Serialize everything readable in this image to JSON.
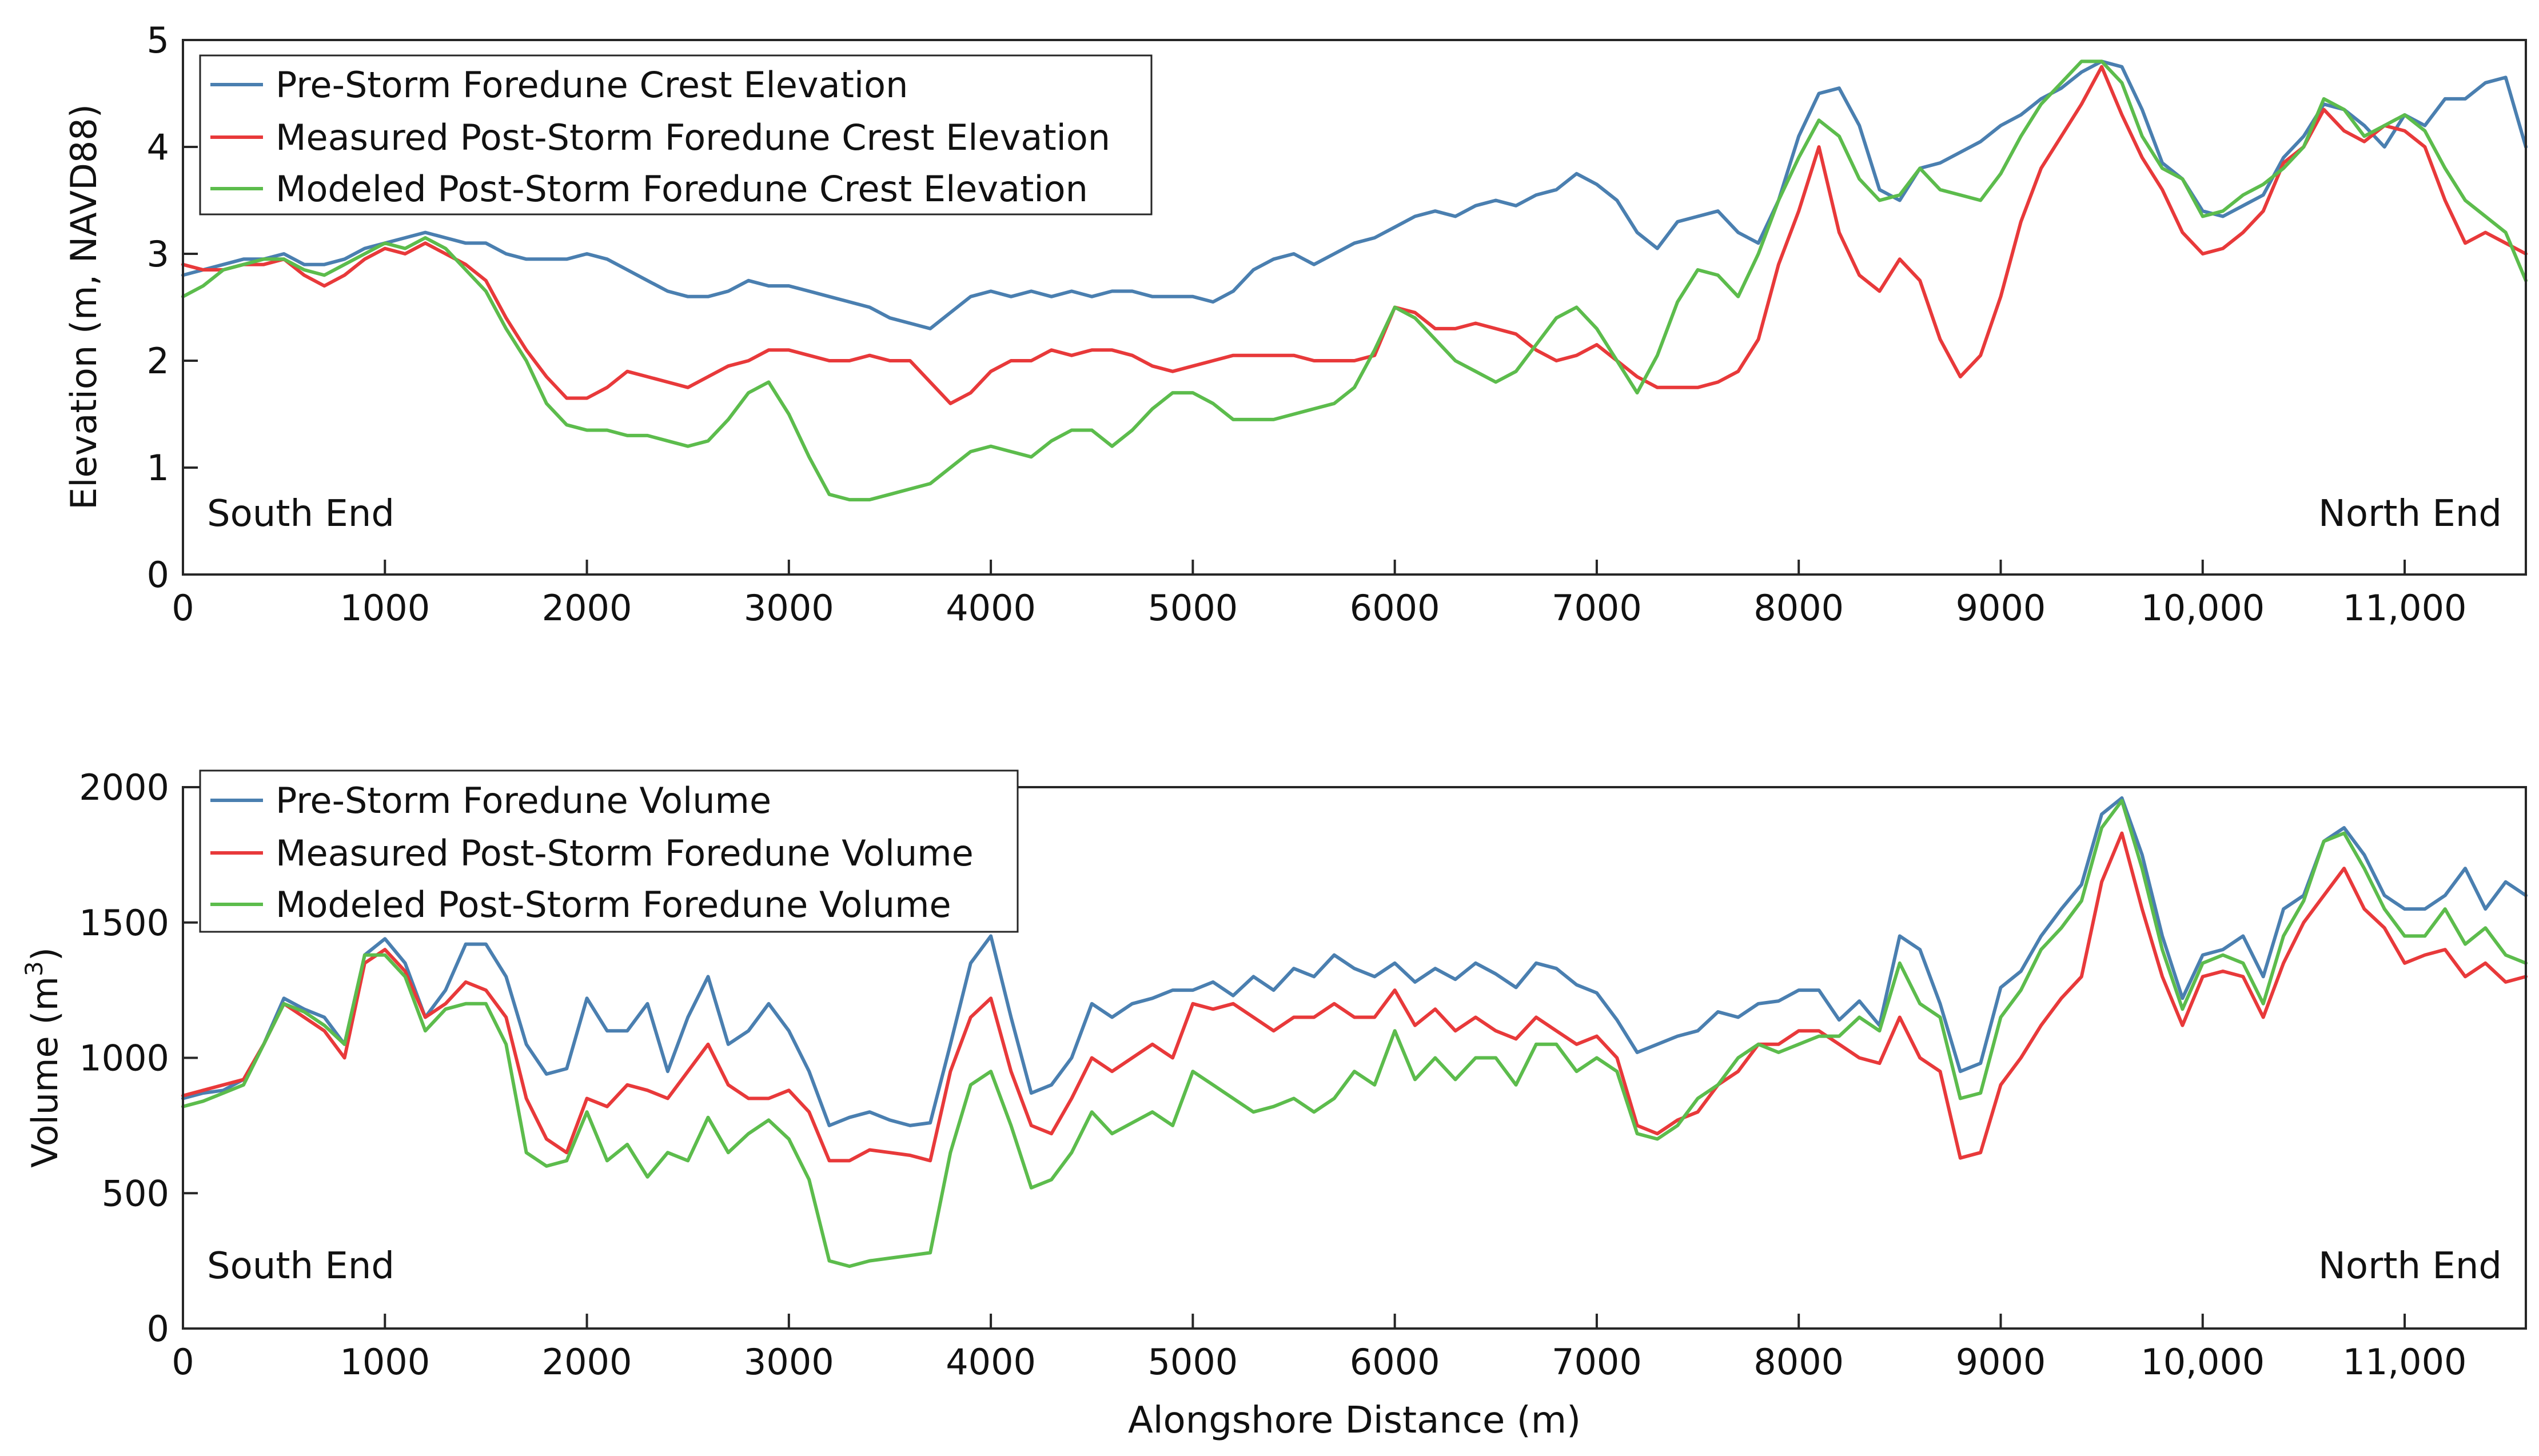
{
  "chart_data": [
    {
      "type": "line",
      "id": "elevation",
      "title": "",
      "xlabel": "",
      "ylabel": "Elevation (m, NAVD88)",
      "xlim": [
        0,
        11600
      ],
      "ylim": [
        0,
        5
      ],
      "grid": false,
      "legend_position": "top-left",
      "x_ticks": [
        0,
        1000,
        2000,
        3000,
        4000,
        5000,
        6000,
        7000,
        8000,
        9000,
        10000,
        11000
      ],
      "x_tick_labels": [
        "0",
        "1000",
        "2000",
        "3000",
        "4000",
        "5000",
        "6000",
        "7000",
        "8000",
        "9000",
        "10,000",
        "11,000"
      ],
      "y_ticks": [
        0,
        1,
        2,
        3,
        4,
        5
      ],
      "y_tick_labels": [
        "0",
        "1",
        "2",
        "3",
        "4",
        "5"
      ],
      "annotations": {
        "left": "South End",
        "right": "North End"
      },
      "x": [
        0,
        100,
        200,
        300,
        400,
        500,
        600,
        700,
        800,
        900,
        1000,
        1100,
        1200,
        1300,
        1400,
        1500,
        1600,
        1700,
        1800,
        1900,
        2000,
        2100,
        2200,
        2300,
        2400,
        2500,
        2600,
        2700,
        2800,
        2900,
        3000,
        3100,
        3200,
        3300,
        3400,
        3500,
        3600,
        3700,
        3800,
        3900,
        4000,
        4100,
        4200,
        4300,
        4400,
        4500,
        4600,
        4700,
        4800,
        4900,
        5000,
        5100,
        5200,
        5300,
        5400,
        5500,
        5600,
        5700,
        5800,
        5900,
        6000,
        6100,
        6200,
        6300,
        6400,
        6500,
        6600,
        6700,
        6800,
        6900,
        7000,
        7100,
        7200,
        7300,
        7400,
        7500,
        7600,
        7700,
        7800,
        7900,
        8000,
        8100,
        8200,
        8300,
        8400,
        8500,
        8600,
        8700,
        8800,
        8900,
        9000,
        9100,
        9200,
        9300,
        9400,
        9500,
        9600,
        9700,
        9800,
        9900,
        10000,
        10100,
        10200,
        10300,
        10400,
        10500,
        10600,
        10700,
        10800,
        10900,
        11000,
        11100,
        11200,
        11300,
        11400,
        11500,
        11600
      ],
      "series": [
        {
          "name": "Pre-Storm Foredune Crest Elevation",
          "color": "#4a7fb0",
          "values": [
            2.8,
            2.85,
            2.9,
            2.95,
            2.95,
            3.0,
            2.9,
            2.9,
            2.95,
            3.05,
            3.1,
            3.15,
            3.2,
            3.15,
            3.1,
            3.1,
            3.0,
            2.95,
            2.95,
            2.95,
            3.0,
            2.95,
            2.85,
            2.75,
            2.65,
            2.6,
            2.6,
            2.65,
            2.75,
            2.7,
            2.7,
            2.65,
            2.6,
            2.55,
            2.5,
            2.4,
            2.35,
            2.3,
            2.45,
            2.6,
            2.65,
            2.6,
            2.65,
            2.6,
            2.65,
            2.6,
            2.65,
            2.65,
            2.6,
            2.6,
            2.6,
            2.55,
            2.65,
            2.85,
            2.95,
            3.0,
            2.9,
            3.0,
            3.1,
            3.15,
            3.25,
            3.35,
            3.4,
            3.35,
            3.45,
            3.5,
            3.45,
            3.55,
            3.6,
            3.75,
            3.65,
            3.5,
            3.2,
            3.05,
            3.3,
            3.35,
            3.4,
            3.2,
            3.1,
            3.5,
            4.1,
            4.5,
            4.55,
            4.2,
            3.6,
            3.5,
            3.8,
            3.85,
            3.95,
            4.05,
            4.2,
            4.3,
            4.45,
            4.55,
            4.7,
            4.8,
            4.75,
            4.35,
            3.85,
            3.7,
            3.4,
            3.35,
            3.45,
            3.55,
            3.9,
            4.1,
            4.4,
            4.35,
            4.2,
            4.0,
            4.3,
            4.2,
            4.45,
            4.45,
            4.6,
            4.65,
            4.0
          ]
        },
        {
          "name": "Measured Post-Storm Foredune Crest Elevation",
          "color": "#e8393a",
          "values": [
            2.9,
            2.85,
            2.85,
            2.9,
            2.9,
            2.95,
            2.8,
            2.7,
            2.8,
            2.95,
            3.05,
            3.0,
            3.1,
            3.0,
            2.9,
            2.75,
            2.4,
            2.1,
            1.85,
            1.65,
            1.65,
            1.75,
            1.9,
            1.85,
            1.8,
            1.75,
            1.85,
            1.95,
            2.0,
            2.1,
            2.1,
            2.05,
            2.0,
            2.0,
            2.05,
            2.0,
            2.0,
            1.8,
            1.6,
            1.7,
            1.9,
            2.0,
            2.0,
            2.1,
            2.05,
            2.1,
            2.1,
            2.05,
            1.95,
            1.9,
            1.95,
            2.0,
            2.05,
            2.05,
            2.05,
            2.05,
            2.0,
            2.0,
            2.0,
            2.05,
            2.5,
            2.45,
            2.3,
            2.3,
            2.35,
            2.3,
            2.25,
            2.1,
            2.0,
            2.05,
            2.15,
            2.0,
            1.85,
            1.75,
            1.75,
            1.75,
            1.8,
            1.9,
            2.2,
            2.9,
            3.4,
            4.0,
            3.2,
            2.8,
            2.65,
            2.95,
            2.75,
            2.2,
            1.85,
            2.05,
            2.6,
            3.3,
            3.8,
            4.1,
            4.4,
            4.75,
            4.3,
            3.9,
            3.6,
            3.2,
            3.0,
            3.05,
            3.2,
            3.4,
            3.85,
            4.0,
            4.35,
            4.15,
            4.05,
            4.2,
            4.15,
            4.0,
            3.5,
            3.1,
            3.2,
            3.1,
            3.0
          ]
        },
        {
          "name": "Modeled Post-Storm Foredune Crest Elevation",
          "color": "#5cbc4c",
          "values": [
            2.6,
            2.7,
            2.85,
            2.9,
            2.95,
            2.95,
            2.85,
            2.8,
            2.9,
            3.0,
            3.1,
            3.05,
            3.15,
            3.05,
            2.85,
            2.65,
            2.3,
            2.0,
            1.6,
            1.4,
            1.35,
            1.35,
            1.3,
            1.3,
            1.25,
            1.2,
            1.25,
            1.45,
            1.7,
            1.8,
            1.5,
            1.1,
            0.75,
            0.7,
            0.7,
            0.75,
            0.8,
            0.85,
            1.0,
            1.15,
            1.2,
            1.15,
            1.1,
            1.25,
            1.35,
            1.35,
            1.2,
            1.35,
            1.55,
            1.7,
            1.7,
            1.6,
            1.45,
            1.45,
            1.45,
            1.5,
            1.55,
            1.6,
            1.75,
            2.1,
            2.5,
            2.4,
            2.2,
            2.0,
            1.9,
            1.8,
            1.9,
            2.15,
            2.4,
            2.5,
            2.3,
            2.0,
            1.7,
            2.05,
            2.55,
            2.85,
            2.8,
            2.6,
            3.0,
            3.5,
            3.9,
            4.25,
            4.1,
            3.7,
            3.5,
            3.55,
            3.8,
            3.6,
            3.55,
            3.5,
            3.75,
            4.1,
            4.4,
            4.6,
            4.8,
            4.8,
            4.6,
            4.1,
            3.8,
            3.7,
            3.35,
            3.4,
            3.55,
            3.65,
            3.8,
            4.0,
            4.45,
            4.35,
            4.1,
            4.2,
            4.3,
            4.15,
            3.8,
            3.5,
            3.35,
            3.2,
            2.75
          ]
        }
      ]
    },
    {
      "type": "line",
      "id": "volume",
      "title": "",
      "xlabel": "Alongshore Distance (m)",
      "ylabel": "Volume (m",
      "ylabel_superscript": "3",
      "ylabel_end": ")",
      "xlim": [
        0,
        11600
      ],
      "ylim": [
        0,
        2000
      ],
      "grid": false,
      "legend_position": "top-left",
      "x_ticks": [
        0,
        1000,
        2000,
        3000,
        4000,
        5000,
        6000,
        7000,
        8000,
        9000,
        10000,
        11000
      ],
      "x_tick_labels": [
        "0",
        "1000",
        "2000",
        "3000",
        "4000",
        "5000",
        "6000",
        "7000",
        "8000",
        "9000",
        "10,000",
        "11,000"
      ],
      "y_ticks": [
        0,
        500,
        1000,
        1500,
        2000
      ],
      "y_tick_labels": [
        "0",
        "500",
        "1000",
        "1500",
        "2000"
      ],
      "annotations": {
        "left": "South End",
        "right": "North End"
      },
      "x": [
        0,
        100,
        200,
        300,
        400,
        500,
        600,
        700,
        800,
        900,
        1000,
        1100,
        1200,
        1300,
        1400,
        1500,
        1600,
        1700,
        1800,
        1900,
        2000,
        2100,
        2200,
        2300,
        2400,
        2500,
        2600,
        2700,
        2800,
        2900,
        3000,
        3100,
        3200,
        3300,
        3400,
        3500,
        3600,
        3700,
        3800,
        3900,
        4000,
        4100,
        4200,
        4300,
        4400,
        4500,
        4600,
        4700,
        4800,
        4900,
        5000,
        5100,
        5200,
        5300,
        5400,
        5500,
        5600,
        5700,
        5800,
        5900,
        6000,
        6100,
        6200,
        6300,
        6400,
        6500,
        6600,
        6700,
        6800,
        6900,
        7000,
        7100,
        7200,
        7300,
        7400,
        7500,
        7600,
        7700,
        7800,
        7900,
        8000,
        8100,
        8200,
        8300,
        8400,
        8500,
        8600,
        8700,
        8800,
        8900,
        9000,
        9100,
        9200,
        9300,
        9400,
        9500,
        9600,
        9700,
        9800,
        9900,
        10000,
        10100,
        10200,
        10300,
        10400,
        10500,
        10600,
        10700,
        10800,
        10900,
        11000,
        11100,
        11200,
        11300,
        11400,
        11500,
        11600
      ],
      "series": [
        {
          "name": "Pre-Storm Foredune Volume",
          "color": "#4a7fb0",
          "values": [
            850,
            870,
            880,
            920,
            1050,
            1220,
            1180,
            1150,
            1050,
            1380,
            1440,
            1350,
            1150,
            1250,
            1420,
            1420,
            1300,
            1050,
            940,
            960,
            1220,
            1100,
            1100,
            1200,
            950,
            1150,
            1300,
            1050,
            1100,
            1200,
            1100,
            950,
            750,
            780,
            800,
            770,
            750,
            760,
            1050,
            1350,
            1450,
            1150,
            870,
            900,
            1000,
            1200,
            1150,
            1200,
            1220,
            1250,
            1250,
            1280,
            1230,
            1300,
            1250,
            1330,
            1300,
            1380,
            1330,
            1300,
            1350,
            1280,
            1330,
            1290,
            1350,
            1310,
            1260,
            1350,
            1330,
            1270,
            1240,
            1140,
            1020,
            1050,
            1080,
            1100,
            1170,
            1150,
            1200,
            1210,
            1250,
            1250,
            1140,
            1210,
            1120,
            1450,
            1400,
            1200,
            950,
            980,
            1260,
            1320,
            1450,
            1550,
            1640,
            1900,
            1960,
            1750,
            1450,
            1220,
            1380,
            1400,
            1450,
            1300,
            1550,
            1600,
            1800,
            1850,
            1750,
            1600,
            1550,
            1550,
            1600,
            1700,
            1550,
            1650,
            1600
          ]
        },
        {
          "name": "Measured Post-Storm Foredune Volume",
          "color": "#e8393a",
          "values": [
            860,
            880,
            900,
            920,
            1050,
            1200,
            1150,
            1100,
            1000,
            1350,
            1400,
            1320,
            1150,
            1200,
            1280,
            1250,
            1150,
            850,
            700,
            650,
            850,
            820,
            900,
            880,
            850,
            950,
            1050,
            900,
            850,
            850,
            880,
            800,
            620,
            620,
            660,
            650,
            640,
            620,
            950,
            1150,
            1220,
            950,
            750,
            720,
            850,
            1000,
            950,
            1000,
            1050,
            1000,
            1200,
            1180,
            1200,
            1150,
            1100,
            1150,
            1150,
            1200,
            1150,
            1150,
            1250,
            1120,
            1180,
            1100,
            1150,
            1100,
            1070,
            1150,
            1100,
            1050,
            1080,
            1000,
            750,
            720,
            770,
            800,
            900,
            950,
            1050,
            1050,
            1100,
            1100,
            1050,
            1000,
            980,
            1150,
            1000,
            950,
            630,
            650,
            900,
            1000,
            1120,
            1220,
            1300,
            1650,
            1830,
            1550,
            1300,
            1120,
            1300,
            1320,
            1300,
            1150,
            1350,
            1500,
            1600,
            1700,
            1550,
            1480,
            1350,
            1380,
            1400,
            1300,
            1350,
            1280,
            1300
          ]
        },
        {
          "name": "Modeled Post-Storm Foredune Volume",
          "color": "#5cbc4c",
          "values": [
            820,
            840,
            870,
            900,
            1050,
            1200,
            1170,
            1120,
            1050,
            1380,
            1380,
            1300,
            1100,
            1180,
            1200,
            1200,
            1050,
            650,
            600,
            620,
            800,
            620,
            680,
            560,
            650,
            620,
            780,
            650,
            720,
            770,
            700,
            550,
            250,
            230,
            250,
            260,
            270,
            280,
            650,
            900,
            950,
            750,
            520,
            550,
            650,
            800,
            720,
            760,
            800,
            750,
            950,
            900,
            850,
            800,
            820,
            850,
            800,
            850,
            950,
            900,
            1100,
            920,
            1000,
            920,
            1000,
            1000,
            900,
            1050,
            1050,
            950,
            1000,
            950,
            720,
            700,
            750,
            850,
            900,
            1000,
            1050,
            1020,
            1050,
            1080,
            1080,
            1150,
            1100,
            1350,
            1200,
            1150,
            850,
            870,
            1150,
            1250,
            1400,
            1480,
            1580,
            1850,
            1950,
            1700,
            1400,
            1180,
            1350,
            1380,
            1350,
            1200,
            1450,
            1580,
            1800,
            1830,
            1700,
            1550,
            1450,
            1450,
            1550,
            1420,
            1480,
            1380,
            1350
          ]
        }
      ]
    }
  ]
}
